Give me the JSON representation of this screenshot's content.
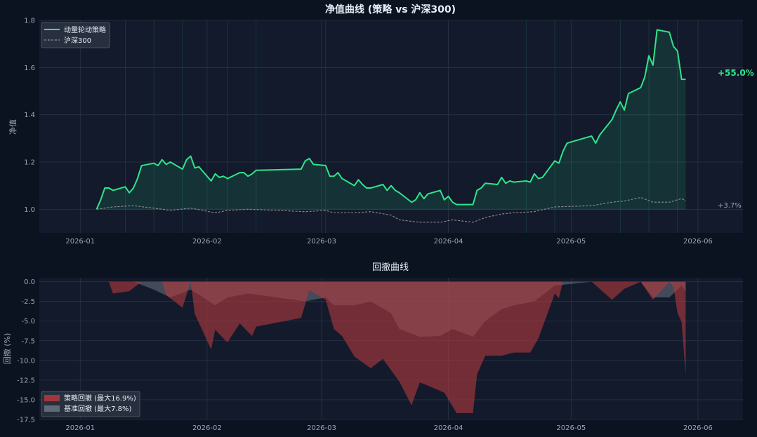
{
  "chart_data": [
    {
      "type": "line",
      "title": "净值曲线 (策略 vs 沪深300)",
      "xlabel": "",
      "ylabel": "净值",
      "ylim": [
        0.9,
        1.8
      ],
      "yticks": [
        "1.0",
        "1.2",
        "1.4",
        "1.6",
        "1.8"
      ],
      "xticks": [
        "2026-01",
        "2026-02",
        "2026-03",
        "2026-04",
        "2026-05",
        "2026-06"
      ],
      "legend": "top-left",
      "grid": true,
      "colors": {
        "strategy": "#2ee58a",
        "benchmark": "#8a8f99"
      },
      "series": [
        {
          "name": "动量轮动策略",
          "x": [
            "2026-01-05",
            "2026-01-06",
            "2026-01-07",
            "2026-01-08",
            "2026-01-09",
            "2026-01-12",
            "2026-01-13",
            "2026-01-14",
            "2026-01-15",
            "2026-01-16",
            "2026-01-19",
            "2026-01-20",
            "2026-01-21",
            "2026-01-22",
            "2026-01-23",
            "2026-01-26",
            "2026-01-27",
            "2026-01-28",
            "2026-01-29",
            "2026-01-30",
            "2026-02-02",
            "2026-02-03",
            "2026-02-04",
            "2026-02-05",
            "2026-02-06",
            "2026-02-09",
            "2026-02-10",
            "2026-02-11",
            "2026-02-12",
            "2026-02-13",
            "2026-02-24",
            "2026-02-25",
            "2026-02-26",
            "2026-02-27",
            "2026-03-02",
            "2026-03-03",
            "2026-03-04",
            "2026-03-05",
            "2026-03-06",
            "2026-03-09",
            "2026-03-10",
            "2026-03-11",
            "2026-03-12",
            "2026-03-13",
            "2026-03-16",
            "2026-03-17",
            "2026-03-18",
            "2026-03-19",
            "2026-03-20",
            "2026-03-23",
            "2026-03-24",
            "2026-03-25",
            "2026-03-26",
            "2026-03-27",
            "2026-03-30",
            "2026-03-31",
            "2026-04-01",
            "2026-04-02",
            "2026-04-03",
            "2026-04-07",
            "2026-04-08",
            "2026-04-09",
            "2026-04-10",
            "2026-04-13",
            "2026-04-14",
            "2026-04-15",
            "2026-04-16",
            "2026-04-17",
            "2026-04-20",
            "2026-04-21",
            "2026-04-22",
            "2026-04-23",
            "2026-04-24",
            "2026-04-27",
            "2026-04-28",
            "2026-04-29",
            "2026-04-30",
            "2026-05-06",
            "2026-05-07",
            "2026-05-08",
            "2026-05-11",
            "2026-05-12",
            "2026-05-13",
            "2026-05-14",
            "2026-05-15",
            "2026-05-18",
            "2026-05-19",
            "2026-05-20",
            "2026-05-21",
            "2026-05-22",
            "2026-05-25",
            "2026-05-26",
            "2026-05-27",
            "2026-05-28",
            "2026-05-29"
          ],
          "values": [
            1.0,
            1.04,
            1.09,
            1.09,
            1.08,
            1.095,
            1.07,
            1.09,
            1.13,
            1.185,
            1.195,
            1.185,
            1.21,
            1.19,
            1.2,
            1.17,
            1.21,
            1.225,
            1.175,
            1.18,
            1.12,
            1.15,
            1.135,
            1.14,
            1.13,
            1.155,
            1.155,
            1.14,
            1.15,
            1.165,
            1.17,
            1.205,
            1.215,
            1.19,
            1.185,
            1.14,
            1.14,
            1.155,
            1.13,
            1.1,
            1.125,
            1.105,
            1.09,
            1.09,
            1.105,
            1.08,
            1.1,
            1.08,
            1.07,
            1.03,
            1.04,
            1.07,
            1.045,
            1.065,
            1.08,
            1.04,
            1.055,
            1.03,
            1.02,
            1.02,
            1.08,
            1.09,
            1.11,
            1.105,
            1.135,
            1.11,
            1.12,
            1.115,
            1.12,
            1.115,
            1.15,
            1.13,
            1.135,
            1.205,
            1.195,
            1.245,
            1.28,
            1.31,
            1.28,
            1.315,
            1.38,
            1.42,
            1.455,
            1.42,
            1.49,
            1.515,
            1.56,
            1.65,
            1.61,
            1.76,
            1.75,
            1.69,
            1.67,
            1.55,
            1.55
          ]
        },
        {
          "name": "沪深300",
          "x": [
            "2026-01-05",
            "2026-01-09",
            "2026-01-14",
            "2026-01-19",
            "2026-01-23",
            "2026-01-28",
            "2026-02-03",
            "2026-02-06",
            "2026-02-11",
            "2026-02-25",
            "2026-03-02",
            "2026-03-04",
            "2026-03-09",
            "2026-03-13",
            "2026-03-18",
            "2026-03-20",
            "2026-03-25",
            "2026-03-30",
            "2026-04-02",
            "2026-04-07",
            "2026-04-10",
            "2026-04-14",
            "2026-04-17",
            "2026-04-22",
            "2026-04-27",
            "2026-05-06",
            "2026-05-11",
            "2026-05-14",
            "2026-05-18",
            "2026-05-21",
            "2026-05-25",
            "2026-05-28",
            "2026-05-29"
          ],
          "values": [
            1.0,
            1.01,
            1.015,
            1.005,
            0.995,
            1.005,
            0.985,
            0.995,
            1.0,
            0.99,
            0.995,
            0.985,
            0.985,
            0.99,
            0.975,
            0.955,
            0.945,
            0.945,
            0.955,
            0.945,
            0.965,
            0.98,
            0.985,
            0.99,
            1.01,
            1.015,
            1.03,
            1.035,
            1.05,
            1.03,
            1.03,
            1.045,
            1.037
          ]
        }
      ],
      "annotations": [
        "+55.0%",
        "+3.7%"
      ]
    },
    {
      "type": "area",
      "title": "回撤曲线",
      "xlabel": "",
      "ylabel": "回撤 (%)",
      "ylim": [
        -17.5,
        0.5
      ],
      "yticks": [
        "0.0",
        "-2.5",
        "-5.0",
        "-7.5",
        "-10.0",
        "-12.5",
        "-15.0",
        "-17.5"
      ],
      "xticks": [
        "2026-01",
        "2026-02",
        "2026-03",
        "2026-04",
        "2026-05",
        "2026-06"
      ],
      "legend": "bottom-left",
      "grid": true,
      "colors": {
        "strategy": "#b33a3e",
        "benchmark": "#6b7380"
      },
      "series": [
        {
          "name": "策略回撤 (最大16.9%)",
          "x": [
            "2026-01-05",
            "2026-01-08",
            "2026-01-09",
            "2026-01-13",
            "2026-01-16",
            "2026-01-19",
            "2026-01-21",
            "2026-01-22",
            "2026-01-26",
            "2026-01-28",
            "2026-01-29",
            "2026-02-02",
            "2026-02-03",
            "2026-02-05",
            "2026-02-06",
            "2026-02-09",
            "2026-02-12",
            "2026-02-13",
            "2026-02-24",
            "2026-02-26",
            "2026-03-02",
            "2026-03-04",
            "2026-03-06",
            "2026-03-09",
            "2026-03-13",
            "2026-03-16",
            "2026-03-20",
            "2026-03-23",
            "2026-03-25",
            "2026-03-27",
            "2026-03-31",
            "2026-04-03",
            "2026-04-07",
            "2026-04-08",
            "2026-04-10",
            "2026-04-14",
            "2026-04-17",
            "2026-04-21",
            "2026-04-23",
            "2026-04-27",
            "2026-04-28",
            "2026-04-29",
            "2026-05-06",
            "2026-05-11",
            "2026-05-14",
            "2026-05-18",
            "2026-05-21",
            "2026-05-25",
            "2026-05-26",
            "2026-05-27",
            "2026-05-28",
            "2026-05-29"
          ],
          "values": [
            0,
            0,
            -1.5,
            -1.2,
            0,
            0,
            0,
            -1.7,
            -3.3,
            0,
            -4.1,
            -8.6,
            -6.1,
            -7.2,
            -7.7,
            -5.3,
            -6.9,
            -5.7,
            -4.6,
            -1.1,
            -2.3,
            -6.0,
            -6.9,
            -9.5,
            -11.0,
            -9.8,
            -12.7,
            -15.7,
            -12.8,
            -13.2,
            -14.1,
            -16.7,
            -16.7,
            -11.8,
            -9.4,
            -9.4,
            -9.0,
            -9.0,
            -7.2,
            -1.5,
            -2.1,
            0,
            0,
            -2.3,
            -0.9,
            0,
            -2.3,
            0,
            -0.6,
            -4.0,
            -5.1,
            -11.9
          ]
        },
        {
          "name": "基准回撤 (最大7.8%)",
          "x": [
            "2026-01-05",
            "2026-01-09",
            "2026-01-14",
            "2026-01-19",
            "2026-01-23",
            "2026-01-28",
            "2026-02-03",
            "2026-02-06",
            "2026-02-11",
            "2026-02-25",
            "2026-03-02",
            "2026-03-04",
            "2026-03-09",
            "2026-03-13",
            "2026-03-18",
            "2026-03-20",
            "2026-03-25",
            "2026-03-30",
            "2026-04-02",
            "2026-04-07",
            "2026-04-10",
            "2026-04-14",
            "2026-04-17",
            "2026-04-22",
            "2026-04-27",
            "2026-05-06",
            "2026-05-11",
            "2026-05-14",
            "2026-05-18",
            "2026-05-21",
            "2026-05-25",
            "2026-05-28",
            "2026-05-29"
          ],
          "values": [
            0,
            0,
            0,
            -1.0,
            -2.0,
            -1.0,
            -3.0,
            -2.0,
            -1.5,
            -2.5,
            -2.0,
            -3.0,
            -3.0,
            -2.5,
            -4.0,
            -6.0,
            -7.0,
            -6.9,
            -6.0,
            -7.0,
            -5.0,
            -3.5,
            -3.0,
            -2.5,
            -0.5,
            0,
            0,
            0,
            0,
            -2.0,
            -2.0,
            -0.5,
            -1.2
          ]
        }
      ]
    }
  ]
}
